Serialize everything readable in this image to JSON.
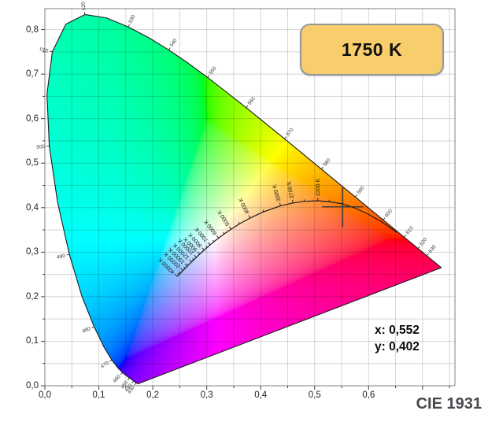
{
  "cct_badge": {
    "label": "1750 K",
    "fill": "#F8CD6B",
    "border_color": "#94979b",
    "text_color": "#111111"
  },
  "readout": {
    "x_label": "x: 0,552",
    "y_label": "y: 0,402"
  },
  "footer": {
    "label": "CIE 1931",
    "color": "#46494d"
  },
  "axes": {
    "x": {
      "major_step": 0.1,
      "minor_step": 0.05,
      "tick_labels": [
        "0,0",
        "0,1",
        "0,2",
        "0,3",
        "0,4",
        "0,5",
        "0,6"
      ]
    },
    "y": {
      "major_step": 0.1,
      "minor_step": 0.05,
      "tick_labels": [
        "0,0",
        "0,1",
        "0,2",
        "0,3",
        "0,4",
        "0,5",
        "0,6",
        "0,7",
        "0,8"
      ]
    },
    "grid_color": "#d6d6d6",
    "border_color": "#808080",
    "tick_color": "#444444",
    "label_color": "#222222"
  },
  "style": {
    "locus_line": "#1c1c1c",
    "planck_line": "#1c1c1c",
    "marker_color": "#3a3a3a",
    "wl_label_color": "#3a3a3a",
    "temp_label_color": "#161616"
  },
  "chart_data": {
    "type": "chromaticity-diagram",
    "title": "CIE 1931",
    "annotation": "1750 K",
    "marker": {
      "x": 0.552,
      "y": 0.402
    },
    "xlim": [
      0,
      0.76
    ],
    "ylim": [
      0,
      0.847
    ],
    "wavelength_tick_labels": [
      430,
      440,
      450,
      460,
      470,
      480,
      490,
      500,
      510,
      520,
      530,
      540,
      550,
      560,
      570,
      580,
      590,
      600,
      610,
      620,
      630
    ],
    "planckian_tick_labels": [
      2200,
      2700,
      3000,
      4000,
      5000,
      6000,
      7000,
      8000,
      9000,
      10000,
      12000,
      15000,
      20000,
      40000
    ],
    "planckian_locus": [
      [
        1000,
        0.6528,
        0.3444
      ],
      [
        1200,
        0.625,
        0.3676
      ],
      [
        1400,
        0.5985,
        0.3859
      ],
      [
        1600,
        0.574,
        0.3994
      ],
      [
        1800,
        0.5515,
        0.4087
      ],
      [
        2000,
        0.5267,
        0.4133
      ],
      [
        2200,
        0.5059,
        0.4155
      ],
      [
        2500,
        0.4806,
        0.4141
      ],
      [
        2700,
        0.4599,
        0.4106
      ],
      [
        3000,
        0.4369,
        0.4041
      ],
      [
        3500,
        0.4053,
        0.3907
      ],
      [
        4000,
        0.3805,
        0.3768
      ],
      [
        4500,
        0.3608,
        0.3636
      ],
      [
        5000,
        0.3451,
        0.3516
      ],
      [
        5500,
        0.3324,
        0.341
      ],
      [
        6000,
        0.3221,
        0.3318
      ],
      [
        6500,
        0.3135,
        0.3237
      ],
      [
        7000,
        0.3064,
        0.3166
      ],
      [
        7500,
        0.3004,
        0.3103
      ],
      [
        8000,
        0.2952,
        0.3048
      ],
      [
        9000,
        0.2869,
        0.2956
      ],
      [
        10000,
        0.2807,
        0.2884
      ],
      [
        11000,
        0.2759,
        0.2828
      ],
      [
        12000,
        0.272,
        0.2782
      ],
      [
        14000,
        0.2661,
        0.2712
      ],
      [
        15000,
        0.2637,
        0.2683
      ],
      [
        17000,
        0.2599,
        0.2637
      ],
      [
        20000,
        0.2559,
        0.2587
      ],
      [
        25000,
        0.2516,
        0.2534
      ],
      [
        30000,
        0.2489,
        0.25
      ],
      [
        40000,
        0.2453,
        0.2456
      ]
    ],
    "spectral_locus": [
      [
        380,
        0.1741,
        0.005
      ],
      [
        385,
        0.174,
        0.005
      ],
      [
        390,
        0.1738,
        0.0049
      ],
      [
        395,
        0.1736,
        0.0049
      ],
      [
        400,
        0.1733,
        0.0048
      ],
      [
        405,
        0.173,
        0.0048
      ],
      [
        410,
        0.1726,
        0.0048
      ],
      [
        415,
        0.1721,
        0.0048
      ],
      [
        420,
        0.1714,
        0.0051
      ],
      [
        425,
        0.1703,
        0.0058
      ],
      [
        430,
        0.1689,
        0.0069
      ],
      [
        435,
        0.1669,
        0.0086
      ],
      [
        440,
        0.1644,
        0.0109
      ],
      [
        445,
        0.1611,
        0.0138
      ],
      [
        450,
        0.1566,
        0.0177
      ],
      [
        455,
        0.151,
        0.0227
      ],
      [
        460,
        0.144,
        0.0297
      ],
      [
        465,
        0.1355,
        0.0399
      ],
      [
        470,
        0.1241,
        0.0578
      ],
      [
        475,
        0.1096,
        0.0868
      ],
      [
        480,
        0.0913,
        0.1327
      ],
      [
        485,
        0.0687,
        0.2007
      ],
      [
        490,
        0.0454,
        0.295
      ],
      [
        495,
        0.0235,
        0.4127
      ],
      [
        500,
        0.0082,
        0.5384
      ],
      [
        505,
        0.0039,
        0.6548
      ],
      [
        510,
        0.0139,
        0.7502
      ],
      [
        515,
        0.0389,
        0.812
      ],
      [
        520,
        0.0743,
        0.8338
      ],
      [
        525,
        0.1142,
        0.8262
      ],
      [
        530,
        0.1547,
        0.8059
      ],
      [
        535,
        0.1929,
        0.7816
      ],
      [
        540,
        0.2296,
        0.7543
      ],
      [
        545,
        0.2658,
        0.7243
      ],
      [
        550,
        0.3016,
        0.6923
      ],
      [
        555,
        0.3373,
        0.6589
      ],
      [
        560,
        0.3731,
        0.6245
      ],
      [
        565,
        0.4087,
        0.5896
      ],
      [
        570,
        0.4441,
        0.5547
      ],
      [
        575,
        0.4788,
        0.5202
      ],
      [
        580,
        0.5125,
        0.4866
      ],
      [
        585,
        0.5448,
        0.4544
      ],
      [
        590,
        0.5752,
        0.4242
      ],
      [
        595,
        0.6029,
        0.3965
      ],
      [
        600,
        0.627,
        0.3725
      ],
      [
        605,
        0.6482,
        0.3514
      ],
      [
        610,
        0.6658,
        0.334
      ],
      [
        615,
        0.6801,
        0.3197
      ],
      [
        620,
        0.6915,
        0.3083
      ],
      [
        625,
        0.7006,
        0.2993
      ],
      [
        630,
        0.7079,
        0.292
      ],
      [
        635,
        0.714,
        0.2859
      ],
      [
        640,
        0.719,
        0.2809
      ],
      [
        645,
        0.723,
        0.277
      ],
      [
        650,
        0.726,
        0.274
      ],
      [
        655,
        0.7283,
        0.2717
      ],
      [
        660,
        0.73,
        0.27
      ],
      [
        665,
        0.7311,
        0.2689
      ],
      [
        670,
        0.732,
        0.268
      ],
      [
        675,
        0.7327,
        0.2673
      ],
      [
        680,
        0.7334,
        0.2666
      ],
      [
        685,
        0.734,
        0.266
      ],
      [
        690,
        0.7344,
        0.2656
      ],
      [
        695,
        0.7346,
        0.2654
      ],
      [
        700,
        0.7347,
        0.2653
      ]
    ]
  }
}
